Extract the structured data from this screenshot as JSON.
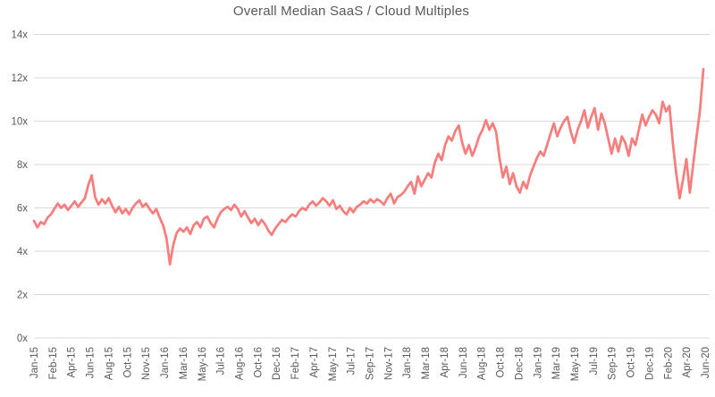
{
  "colors": {
    "line": "#f87d7d",
    "grid": "#d9d9d9",
    "text": "#595959",
    "background": "#ffffff"
  },
  "chart_data": {
    "type": "line",
    "title": "Overall Median SaaS / Cloud Multiples",
    "xlabel": "",
    "ylabel": "",
    "ylim": [
      0,
      14
    ],
    "grid": true,
    "legend": "none",
    "y_ticks": [
      {
        "value": 0,
        "label": "0x"
      },
      {
        "value": 2,
        "label": "2x"
      },
      {
        "value": 4,
        "label": "4x"
      },
      {
        "value": 6,
        "label": "6x"
      },
      {
        "value": 8,
        "label": "8x"
      },
      {
        "value": 10,
        "label": "10x"
      },
      {
        "value": 12,
        "label": "12x"
      },
      {
        "value": 14,
        "label": "14x"
      }
    ],
    "x_tick_labels": [
      "Jan-15",
      "Feb-15",
      "Apr-15",
      "Jun-15",
      "Aug-15",
      "Oct-15",
      "Nov-15",
      "Jan-16",
      "Mar-16",
      "May-16",
      "Jul-16",
      "Aug-16",
      "Oct-16",
      "Dec-16",
      "Feb-17",
      "Apr-17",
      "May-17",
      "Jul-17",
      "Sep-17",
      "Nov-17",
      "Jan-18",
      "Mar-18",
      "Apr-18",
      "Jun-18",
      "Aug-18",
      "Oct-18",
      "Dec-18",
      "Jan-19",
      "Mar-19",
      "May-19",
      "Jul-19",
      "Sep-19",
      "Oct-19",
      "Dec-19",
      "Feb-20",
      "Apr-20",
      "Jun-20"
    ],
    "series": [
      {
        "name": "Overall Median SaaS / Cloud Multiples",
        "color": "#f87d7d",
        "x_range": [
          "Jan-2015",
          "May-2020"
        ],
        "values": [
          5.4,
          5.1,
          5.35,
          5.25,
          5.55,
          5.7,
          5.95,
          6.2,
          6.0,
          6.15,
          5.9,
          6.1,
          6.3,
          6.05,
          6.25,
          6.45,
          7.05,
          7.5,
          6.5,
          6.15,
          6.4,
          6.2,
          6.45,
          6.1,
          5.8,
          6.05,
          5.75,
          5.95,
          5.7,
          6.0,
          6.2,
          6.35,
          6.05,
          6.2,
          5.95,
          5.75,
          5.95,
          5.55,
          5.2,
          4.6,
          3.4,
          4.3,
          4.85,
          5.05,
          4.9,
          5.1,
          4.8,
          5.2,
          5.35,
          5.1,
          5.5,
          5.6,
          5.3,
          5.1,
          5.5,
          5.8,
          5.95,
          6.05,
          5.9,
          6.15,
          5.95,
          5.6,
          5.85,
          5.55,
          5.3,
          5.5,
          5.2,
          5.45,
          5.25,
          4.95,
          4.75,
          5.05,
          5.25,
          5.45,
          5.35,
          5.55,
          5.7,
          5.6,
          5.85,
          6.0,
          5.9,
          6.15,
          6.3,
          6.1,
          6.25,
          6.45,
          6.3,
          6.1,
          6.35,
          5.95,
          6.1,
          5.85,
          5.7,
          6.0,
          5.8,
          6.05,
          6.15,
          6.3,
          6.2,
          6.4,
          6.25,
          6.4,
          6.3,
          6.15,
          6.45,
          6.65,
          6.2,
          6.5,
          6.6,
          6.75,
          7.0,
          7.2,
          6.65,
          7.45,
          7.0,
          7.3,
          7.6,
          7.4,
          8.1,
          8.5,
          8.2,
          8.9,
          9.3,
          9.1,
          9.55,
          9.8,
          9.0,
          8.5,
          8.9,
          8.4,
          8.8,
          9.3,
          9.6,
          10.05,
          9.6,
          9.9,
          9.5,
          8.3,
          7.4,
          7.9,
          7.1,
          7.6,
          7.0,
          6.7,
          7.2,
          6.9,
          7.5,
          7.9,
          8.3,
          8.6,
          8.4,
          8.9,
          9.4,
          9.9,
          9.3,
          9.7,
          10.0,
          10.2,
          9.5,
          9.0,
          9.6,
          10.0,
          10.5,
          9.7,
          10.2,
          10.6,
          9.6,
          10.35,
          9.9,
          9.2,
          8.5,
          9.2,
          8.6,
          9.3,
          9.0,
          8.4,
          9.2,
          8.9,
          9.6,
          10.3,
          9.8,
          10.2,
          10.5,
          10.3,
          9.9,
          10.9,
          10.45,
          10.7,
          9.0,
          7.6,
          6.45,
          7.3,
          8.25,
          6.7,
          8.0,
          9.3,
          10.5,
          12.4
        ]
      }
    ]
  }
}
